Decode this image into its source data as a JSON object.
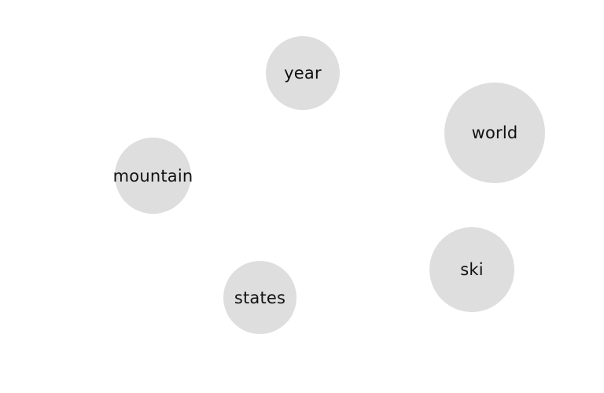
{
  "diagram": {
    "type": "word-bubbles",
    "bubble_color": "#dedede",
    "text_color": "#111111",
    "words": [
      {
        "label": "year"
      },
      {
        "label": "world"
      },
      {
        "label": "mountain"
      },
      {
        "label": "ski"
      },
      {
        "label": "states"
      }
    ]
  }
}
